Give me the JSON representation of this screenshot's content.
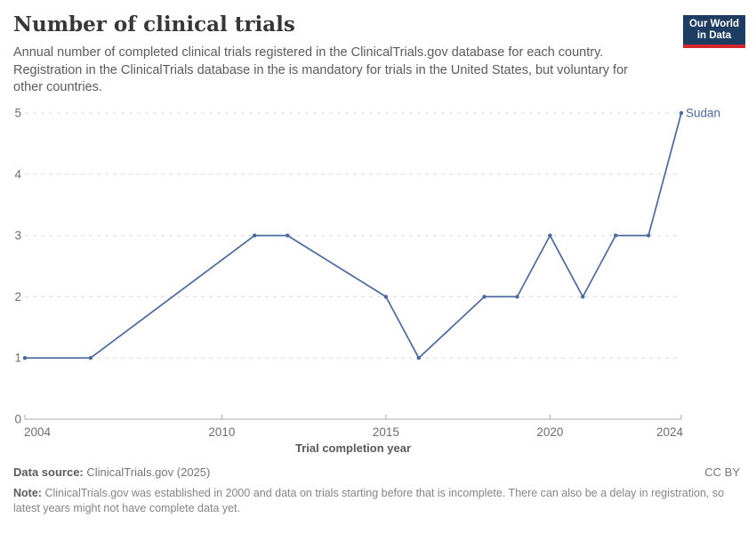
{
  "header": {
    "title": "Number of clinical trials",
    "subtitle": "Annual number of completed clinical trials registered in the ClinicalTrials.gov database for each country. Registration in the ClinicalTrials database in the is mandatory for trials in the United States, but voluntary for other countries.",
    "logo": {
      "line1": "Our World",
      "line2": "in Data"
    }
  },
  "chart_data": {
    "type": "line",
    "title": "Number of clinical trials",
    "xlabel": "Trial completion year",
    "ylabel": "",
    "xlim": [
      2004,
      2024
    ],
    "ylim": [
      0,
      5
    ],
    "yticks": [
      0,
      1,
      2,
      3,
      4,
      5
    ],
    "xticks": [
      2004,
      2010,
      2015,
      2020,
      2024
    ],
    "grid": "horizontal-dashed",
    "legend_position": "end-of-line-label",
    "series": [
      {
        "name": "Sudan",
        "color": "#4a69a0",
        "x": [
          2004,
          2006,
          2011,
          2012,
          2015,
          2016,
          2018,
          2019,
          2020,
          2021,
          2022,
          2023,
          2024
        ],
        "values": [
          1,
          1,
          3,
          3,
          2,
          1,
          2,
          2,
          3,
          2,
          3,
          3,
          5
        ]
      }
    ]
  },
  "footer": {
    "data_source_label": "Data source:",
    "data_source_value": "ClinicalTrials.gov (2025)",
    "license": "CC BY",
    "note_label": "Note:",
    "note_text": "ClinicalTrials.gov was established in 2000 and data on trials starting before that is incomplete. There can also be a delay in registration, so latest years might not have complete data yet."
  },
  "colors": {
    "line": "#4a69a0",
    "logo_navy": "#1d3d63",
    "logo_red": "#d4262f",
    "grid": "#dcdcdc",
    "axis": "#a8a8a8"
  }
}
